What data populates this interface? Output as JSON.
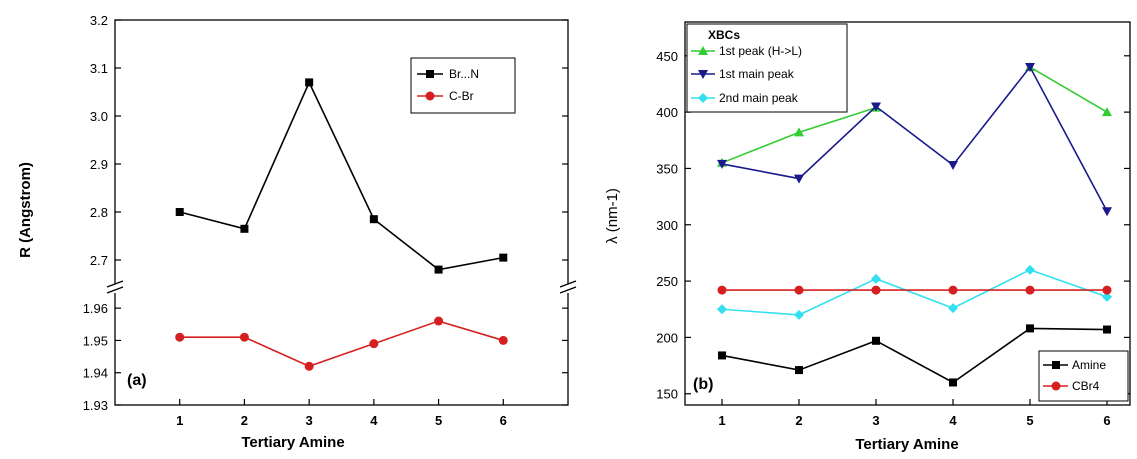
{
  "chart_data": [
    {
      "type": "line",
      "panel_label": "(a)",
      "xlabel": "Tertiary Amine",
      "ylabel": "R (Angstrom)",
      "x": [
        1,
        2,
        3,
        4,
        5,
        6
      ],
      "x_ticks": [
        "1",
        "2",
        "3",
        "4",
        "5",
        "6"
      ],
      "xlim": [
        0,
        7
      ],
      "y_break": true,
      "upper_ylim": [
        2.65,
        3.2
      ],
      "upper_yticks": [
        "2.7",
        "2.8",
        "2.9",
        "3.0",
        "3.1",
        "3.2"
      ],
      "lower_ylim": [
        1.93,
        1.965
      ],
      "lower_yticks": [
        "1.93",
        "1.94",
        "1.95",
        "1.96"
      ],
      "legend_position": "top-right",
      "series": [
        {
          "name": "Br...N",
          "values": [
            2.8,
            2.765,
            3.07,
            2.785,
            2.68,
            2.705
          ],
          "color": "#000000",
          "marker": "square",
          "axis": "upper"
        },
        {
          "name": "C-Br",
          "values": [
            1.951,
            1.951,
            1.942,
            1.949,
            1.956,
            1.95
          ],
          "color": "#d62020",
          "marker": "circle",
          "axis": "lower"
        }
      ]
    },
    {
      "type": "line",
      "panel_label": "(b)",
      "xlabel": "Tertiary Amine",
      "ylabel": "λ (nm-1)",
      "x": [
        1,
        2,
        3,
        4,
        5,
        6
      ],
      "x_ticks": [
        "1",
        "2",
        "3",
        "4",
        "5",
        "6"
      ],
      "xlim": [
        1,
        6
      ],
      "ylim": [
        140,
        480
      ],
      "yticks": [
        "150",
        "200",
        "250",
        "300",
        "350",
        "400",
        "450"
      ],
      "legend_top": {
        "title": "XBCs",
        "position": "top-left",
        "entries": [
          "1st peak (H->L)",
          "1st main peak",
          "2nd main peak"
        ]
      },
      "legend_bottom": {
        "position": "bottom-right",
        "entries": [
          "Amine",
          "CBr4"
        ]
      },
      "series": [
        {
          "name": "1st peak (H->L)",
          "x": [
            1,
            2,
            3
          ],
          "values": [
            355,
            382,
            404
          ],
          "color": "#33cc33",
          "marker": "triangle-up"
        },
        {
          "name": "1st peak (H->L)",
          "x": [
            5,
            6
          ],
          "values": [
            440,
            400
          ],
          "color": "#33cc33",
          "marker": "triangle-up",
          "continuation": true
        },
        {
          "name": "1st main peak",
          "x": [
            1,
            2,
            3,
            4,
            5,
            6
          ],
          "values": [
            354,
            341,
            405,
            353,
            440,
            312
          ],
          "color": "#1a1a8c",
          "marker": "triangle-down"
        },
        {
          "name": "2nd main peak",
          "x": [
            1,
            2,
            3,
            4,
            5,
            6
          ],
          "values": [
            225,
            220,
            252,
            226,
            260,
            236
          ],
          "color": "#33e0f0",
          "marker": "diamond"
        },
        {
          "name": "CBr4",
          "x": [
            1,
            2,
            3,
            4,
            5,
            6
          ],
          "values": [
            242,
            242,
            242,
            242,
            242,
            242
          ],
          "color": "#d62020",
          "marker": "circle"
        },
        {
          "name": "Amine",
          "x": [
            1,
            2,
            3,
            4,
            5,
            6
          ],
          "values": [
            184,
            171,
            197,
            160,
            208,
            207
          ],
          "color": "#000000",
          "marker": "square"
        }
      ]
    }
  ]
}
